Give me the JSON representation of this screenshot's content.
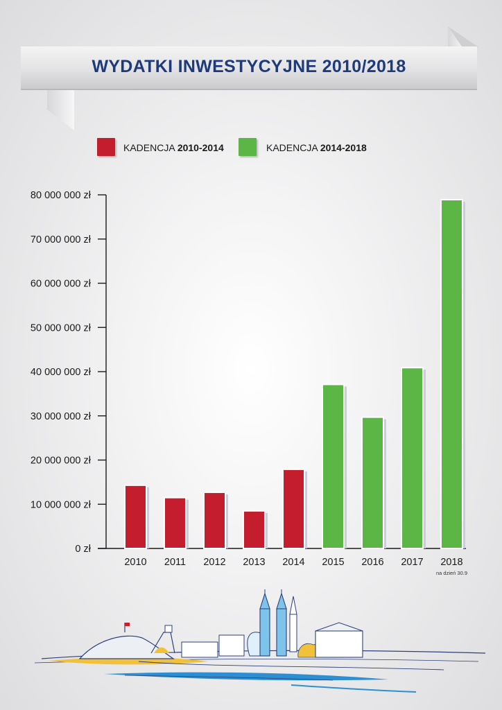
{
  "title": "WYDATKI INWESTYCYJNE 2010/2018",
  "legend": [
    {
      "prefix": "KADENCJA ",
      "range": "2010-2014",
      "color": "#c41e2e"
    },
    {
      "prefix": "KADENCJA ",
      "range": "2014-2018",
      "color": "#5bb646"
    }
  ],
  "chart_data": {
    "type": "bar",
    "title": "WYDATKI INWESTYCYJNE 2010/2018",
    "categories": [
      "2010",
      "2011",
      "2012",
      "2013",
      "2014",
      "2015",
      "2016",
      "2017",
      "2018"
    ],
    "values": [
      14300000,
      11500000,
      12700000,
      8500000,
      17900000,
      37100000,
      29700000,
      40900000,
      78900000
    ],
    "bar_colors": [
      "#c41e2e",
      "#c41e2e",
      "#c41e2e",
      "#c41e2e",
      "#c41e2e",
      "#5bb646",
      "#5bb646",
      "#5bb646",
      "#5bb646"
    ],
    "ylim": [
      0,
      80000000
    ],
    "yticks": [
      "0 zł",
      "10 000 000 zł",
      "20 000 000 zł",
      "30 000 000 zł",
      "40 000 000 zł",
      "50 000 000 zł",
      "60 000 000 zł",
      "70 000 000 zł",
      "80 000 000 zł"
    ],
    "annotation": {
      "category": "2018",
      "text": "na dzień 30.9"
    },
    "grid": false,
    "legend_position": "top"
  }
}
